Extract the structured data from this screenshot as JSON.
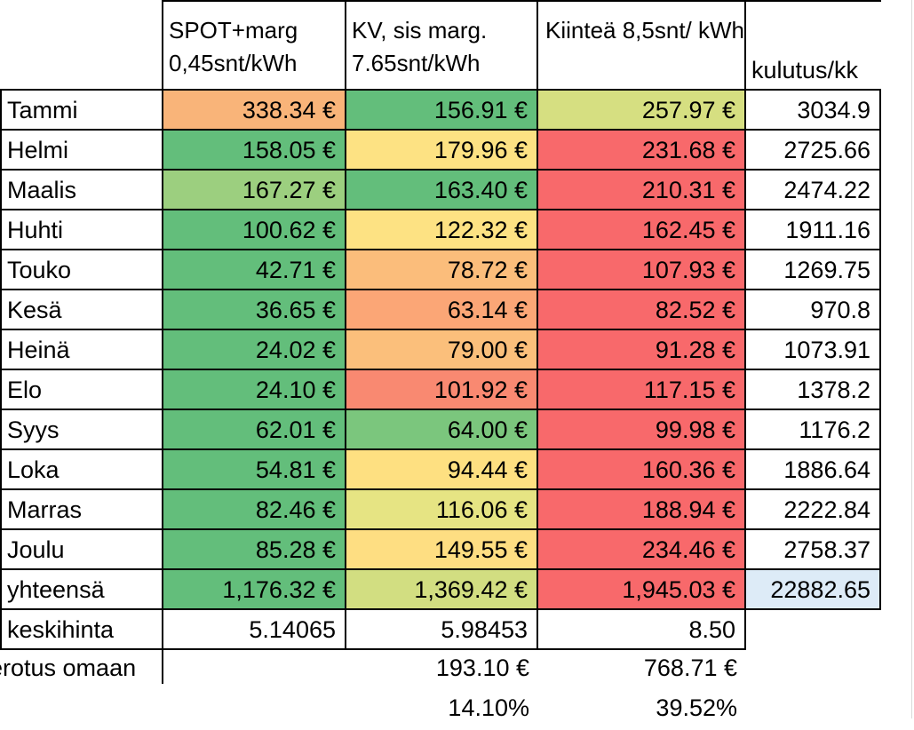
{
  "headers": {
    "spot": "SPOT+marg 0,45snt/kWh",
    "kv": "KV, sis marg. 7.65snt/kWh",
    "fixed": "Kiinteä 8,5snt/ kWh",
    "usage": "kulutus/kk"
  },
  "months": [
    {
      "name": "Tammi",
      "spot": "338.34 €",
      "kv": "156.91 €",
      "fixed": "257.97 €",
      "usage": "3034.9"
    },
    {
      "name": "Helmi",
      "spot": "158.05 €",
      "kv": "179.96 €",
      "fixed": "231.68 €",
      "usage": "2725.66"
    },
    {
      "name": "Maalis",
      "spot": "167.27 €",
      "kv": "163.40 €",
      "fixed": "210.31 €",
      "usage": "2474.22"
    },
    {
      "name": "Huhti",
      "spot": "100.62 €",
      "kv": "122.32 €",
      "fixed": "162.45 €",
      "usage": "1911.16"
    },
    {
      "name": "Touko",
      "spot": "42.71 €",
      "kv": "78.72 €",
      "fixed": "107.93 €",
      "usage": "1269.75"
    },
    {
      "name": "Kesä",
      "spot": "36.65 €",
      "kv": "63.14 €",
      "fixed": "82.52 €",
      "usage": "970.8"
    },
    {
      "name": "Heinä",
      "spot": "24.02 €",
      "kv": "79.00 €",
      "fixed": "91.28 €",
      "usage": "1073.91"
    },
    {
      "name": "Elo",
      "spot": "24.10 €",
      "kv": "101.92 €",
      "fixed": "117.15 €",
      "usage": "1378.2"
    },
    {
      "name": "Syys",
      "spot": "62.01 €",
      "kv": "64.00 €",
      "fixed": "99.98 €",
      "usage": "1176.2"
    },
    {
      "name": "Loka",
      "spot": "54.81 €",
      "kv": "94.44 €",
      "fixed": "160.36 €",
      "usage": "1886.64"
    },
    {
      "name": "Marras",
      "spot": "82.46 €",
      "kv": "116.06 €",
      "fixed": "188.94 €",
      "usage": "2222.84"
    },
    {
      "name": "Joulu",
      "spot": "85.28 €",
      "kv": "149.55 €",
      "fixed": "234.46 €",
      "usage": "2758.37"
    }
  ],
  "total": {
    "label": "yhteensä",
    "spot": "1,176.32 €",
    "kv": "1,369.42 €",
    "fixed": "1,945.03 €",
    "usage": "22882.65"
  },
  "avg": {
    "label": "keskihinta",
    "spot": "5.14065",
    "kv": "5.98453",
    "fixed": "8.50"
  },
  "diff": {
    "label": "erotus omaan",
    "kv": "193.10 €",
    "fixed": "768.71  €"
  },
  "pct": {
    "kv": "14.10%",
    "fixed": "39.52%"
  },
  "colors": {
    "spot": [
      "#f9b479",
      "#63be7b",
      "#9ccf7f",
      "#63be7b",
      "#63be7b",
      "#63be7b",
      "#63be7b",
      "#63be7b",
      "#63be7b",
      "#63be7b",
      "#63be7b",
      "#63be7b"
    ],
    "kv": [
      "#63be7b",
      "#fde283",
      "#63be7b",
      "#fde283",
      "#fbbd7b",
      "#fba676",
      "#fbbf7b",
      "#f98971",
      "#7bc67d",
      "#fee081",
      "#e6e483",
      "#fede82"
    ],
    "fixed": [
      "#d6df81",
      "#f8696b",
      "#f8696b",
      "#f8696b",
      "#f8696b",
      "#f8696b",
      "#f8696b",
      "#f8696b",
      "#f8696b",
      "#f8696b",
      "#f8696b",
      "#f8696b"
    ],
    "total": {
      "spot": "#63be7b",
      "kv": "#d2de81",
      "fixed": "#f8696b",
      "usage": "#ddebf7"
    }
  }
}
